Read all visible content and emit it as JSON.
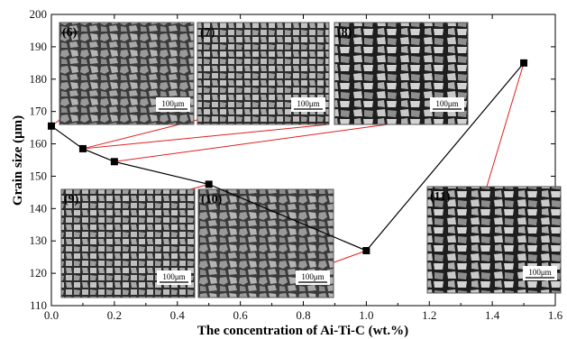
{
  "chart_data": {
    "type": "line",
    "xlabel": "The concentration of Ai-Ti-C (wt.%)",
    "ylabel": "Grain size (μm)",
    "xlim": [
      0.0,
      1.6
    ],
    "ylim": [
      110,
      200
    ],
    "xticks": [
      "0.0",
      "0.2",
      "0.4",
      "0.6",
      "0.8",
      "1.0",
      "1.2",
      "1.4",
      "1.6"
    ],
    "yticks": [
      "110",
      "120",
      "130",
      "140",
      "150",
      "160",
      "170",
      "180",
      "190",
      "200"
    ],
    "grid": false,
    "series": [
      {
        "x": [
          0.0,
          0.1,
          0.2,
          0.5,
          1.0,
          1.5
        ],
        "y": [
          165.5,
          158.5,
          154.5,
          147.5,
          127,
          185
        ],
        "color": "#000000",
        "marker": "square"
      }
    ],
    "insets": [
      {
        "label": "(6)",
        "scale": "100μm",
        "links_to_point": 0
      },
      {
        "label": "(7)",
        "scale": "100μm",
        "links_to_point": 1
      },
      {
        "label": "(8)",
        "scale": "100μm",
        "links_to_point": 2
      },
      {
        "label": "(9)",
        "scale": "100μm",
        "links_to_point": 3
      },
      {
        "label": "(10)",
        "scale": "100μm",
        "links_to_point": 4
      },
      {
        "label": "(11)",
        "scale": "100μm",
        "links_to_point": 5
      }
    ],
    "connector_color": "#e02020"
  }
}
